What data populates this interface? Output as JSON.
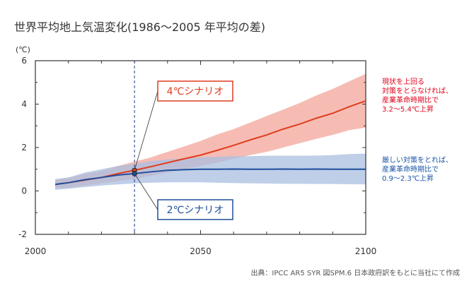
{
  "chart_data": {
    "type": "line",
    "title": "世界平均地上気温変化(1986～2005 年平均の差)",
    "y_unit": "(℃)",
    "xlim": [
      2000,
      2100
    ],
    "ylim": [
      -2,
      6
    ],
    "x_ticks": [
      "2000",
      "2050",
      "2100"
    ],
    "y_ticks": [
      "6",
      "4",
      "2",
      "0",
      "-2"
    ],
    "marker_year": 2030,
    "x": [
      2006,
      2010,
      2015,
      2020,
      2025,
      2030,
      2035,
      2040,
      2045,
      2050,
      2055,
      2060,
      2065,
      2070,
      2075,
      2080,
      2085,
      2090,
      2095,
      2100
    ],
    "series": [
      {
        "name": "4℃シナリオ",
        "color": "#e03c1f",
        "band_color": "#f4b0a6",
        "values": [
          0.3,
          0.38,
          0.5,
          0.62,
          0.8,
          0.95,
          1.12,
          1.3,
          1.48,
          1.65,
          1.87,
          2.1,
          2.35,
          2.58,
          2.85,
          3.08,
          3.35,
          3.58,
          3.88,
          4.15
        ],
        "lower": [
          0.12,
          0.15,
          0.25,
          0.35,
          0.45,
          0.55,
          0.7,
          0.85,
          1.0,
          1.15,
          1.3,
          1.48,
          1.65,
          1.8,
          2.0,
          2.2,
          2.4,
          2.58,
          2.8,
          2.92
        ],
        "upper": [
          0.5,
          0.6,
          0.78,
          0.92,
          1.15,
          1.35,
          1.55,
          1.8,
          2.05,
          2.3,
          2.6,
          2.85,
          3.15,
          3.45,
          3.75,
          4.05,
          4.4,
          4.7,
          5.05,
          5.4
        ]
      },
      {
        "name": "2℃シナリオ",
        "color": "#1f4e9c",
        "band_color": "#aabfe0",
        "values": [
          0.3,
          0.38,
          0.52,
          0.62,
          0.73,
          0.8,
          0.88,
          0.95,
          0.98,
          1.0,
          1.0,
          1.01,
          1.0,
          1.0,
          1.01,
          1.0,
          1.01,
          1.0,
          1.0,
          1.0
        ],
        "lower": [
          0.05,
          0.1,
          0.18,
          0.25,
          0.3,
          0.35,
          0.38,
          0.4,
          0.4,
          0.4,
          0.38,
          0.36,
          0.35,
          0.34,
          0.33,
          0.33,
          0.32,
          0.32,
          0.31,
          0.3
        ],
        "upper": [
          0.55,
          0.62,
          0.85,
          1.0,
          1.15,
          1.25,
          1.38,
          1.45,
          1.5,
          1.55,
          1.58,
          1.6,
          1.6,
          1.62,
          1.62,
          1.62,
          1.63,
          1.65,
          1.7,
          1.72
        ]
      }
    ],
    "annotations": {
      "note_red": [
        "現状を上回る",
        "対策をとらなければ、",
        "産業革命時期比で",
        "3.2～5.4℃上昇"
      ],
      "note_blue": [
        "厳しい対策をとれば、",
        "産業革命時期比で",
        "0.9～2.3℃上昇"
      ]
    },
    "source": "出典：IPCC AR5 SYR 図SPM.6 日本政府訳をもとに当社にて作成"
  }
}
